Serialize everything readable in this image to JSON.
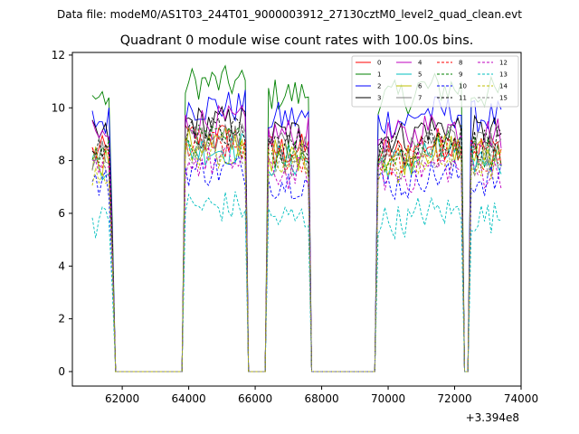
{
  "chart_data": {
    "type": "line",
    "suptitle": "Data file: modeM0/AS1T03_244T01_9000003912_27130cztM0_level2_quad_clean.evt",
    "title": "Quadrant 0 module wise count rates with 100.0s bins.",
    "xlabel": "",
    "ylabel": "",
    "x_offset_label": "+3.394e8",
    "xlim": [
      60500,
      74000
    ],
    "ylim": [
      -0.55,
      12.1
    ],
    "xticks": [
      62000,
      64000,
      66000,
      68000,
      70000,
      72000,
      74000
    ],
    "xtick_labels": [
      "62000",
      "64000",
      "66000",
      "68000",
      "70000",
      "72000",
      "74000"
    ],
    "yticks": [
      0,
      2,
      4,
      6,
      8,
      10,
      12
    ],
    "ytick_labels": [
      "0",
      "2",
      "4",
      "6",
      "8",
      "10",
      "12"
    ],
    "legend_location": "upper right",
    "gaps": [
      {
        "start": 61800,
        "end": 63800
      },
      {
        "start": 65800,
        "end": 66300
      },
      {
        "start": 67700,
        "end": 69600
      },
      {
        "start": 72300,
        "end": 72400
      }
    ],
    "series": [
      {
        "name": "0",
        "color": "#ff0000",
        "dashed": false,
        "level": 8.3
      },
      {
        "name": "1",
        "color": "#008000",
        "dashed": false,
        "level": 10.4
      },
      {
        "name": "2",
        "color": "#0000ff",
        "dashed": false,
        "level": 9.5
      },
      {
        "name": "3",
        "color": "#000000",
        "dashed": false,
        "level": 8.9
      },
      {
        "name": "4",
        "color": "#bf00bf",
        "dashed": false,
        "level": 8.9
      },
      {
        "name": "5",
        "color": "#00bfbf",
        "dashed": false,
        "level": 7.9
      },
      {
        "name": "6",
        "color": "#bfbf00",
        "dashed": false,
        "level": 8.1
      },
      {
        "name": "7",
        "color": "#808080",
        "dashed": false,
        "level": 8.3
      },
      {
        "name": "8",
        "color": "#ff0000",
        "dashed": true,
        "level": 8.0
      },
      {
        "name": "9",
        "color": "#008000",
        "dashed": true,
        "level": 8.2
      },
      {
        "name": "10",
        "color": "#0000ff",
        "dashed": true,
        "level": 7.1
      },
      {
        "name": "11",
        "color": "#000000",
        "dashed": true,
        "level": 8.5
      },
      {
        "name": "12",
        "color": "#bf00bf",
        "dashed": true,
        "level": 7.4
      },
      {
        "name": "13",
        "color": "#00bfbf",
        "dashed": true,
        "level": 5.7
      },
      {
        "name": "14",
        "color": "#bfbf00",
        "dashed": true,
        "level": 7.7
      },
      {
        "name": "15",
        "color": "#808080",
        "dashed": true,
        "level": 7.9
      }
    ]
  }
}
